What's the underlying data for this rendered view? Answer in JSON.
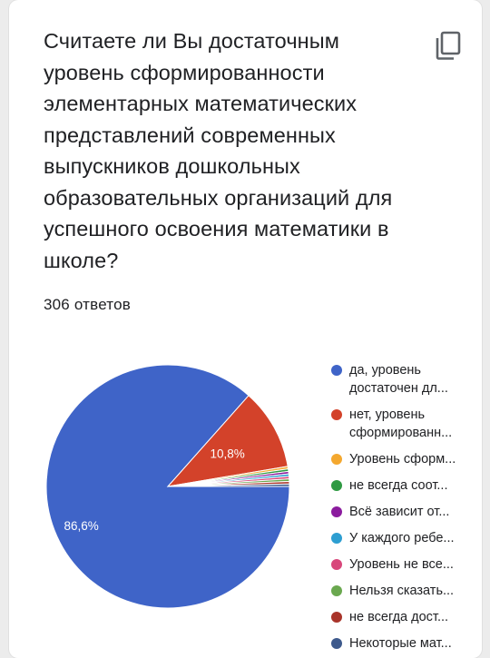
{
  "question": {
    "title": "Считаете ли Вы достаточным уровень сформированности элементарных математических представлений современных выпускников дошкольных образовательных организаций для успешного освоения математики в школе?",
    "response_count": "306 ответов"
  },
  "icons": {
    "copy": "copy-icon"
  },
  "chart_data": {
    "type": "pie",
    "slices": [
      {
        "label": "да, уровень достаточен дл...",
        "value": 86.6,
        "value_label": "86,6%",
        "color": "#3f64c8"
      },
      {
        "label": "нет, уровень сформированн...",
        "value": 10.8,
        "value_label": "10,8%",
        "color": "#d3422a"
      },
      {
        "label": "Уровень сформ...",
        "value": 0.33,
        "color": "#f4a82f"
      },
      {
        "label": "не всегда соот...",
        "value": 0.33,
        "color": "#2f9a43"
      },
      {
        "label": "Всё зависит от...",
        "value": 0.33,
        "color": "#8b1c9e"
      },
      {
        "label": "У каждого ребе...",
        "value": 0.33,
        "color": "#2d9ed1"
      },
      {
        "label": "Уровень не все...",
        "value": 0.33,
        "color": "#d8477b"
      },
      {
        "label": "Нельзя сказать...",
        "value": 0.33,
        "color": "#6aa84f"
      },
      {
        "label": "не всегда дост...",
        "value": 0.33,
        "color": "#a9342a"
      },
      {
        "label": "Некоторые мат...",
        "value": 0.33,
        "color": "#3e5a8c"
      }
    ],
    "legend": {
      "entries": [
        {
          "line1": "да, уровень",
          "line2": "достаточен дл...",
          "color": "#3f64c8"
        },
        {
          "line1": "нет, уровень",
          "line2": "сформированн...",
          "color": "#d3422a"
        },
        {
          "line1": "Уровень сформ...",
          "color": "#f4a82f"
        },
        {
          "line1": "не всегда соот...",
          "color": "#2f9a43"
        },
        {
          "line1": "Всё зависит от...",
          "color": "#8b1c9e"
        },
        {
          "line1": "У каждого ребе...",
          "color": "#2d9ed1"
        },
        {
          "line1": "Уровень не все...",
          "color": "#d8477b"
        },
        {
          "line1": "Нельзя сказать...",
          "color": "#6aa84f"
        },
        {
          "line1": "не всегда дост...",
          "color": "#a9342a"
        },
        {
          "line1": "Некоторые мат...",
          "color": "#3e5a8c"
        }
      ],
      "placement": "right"
    }
  }
}
